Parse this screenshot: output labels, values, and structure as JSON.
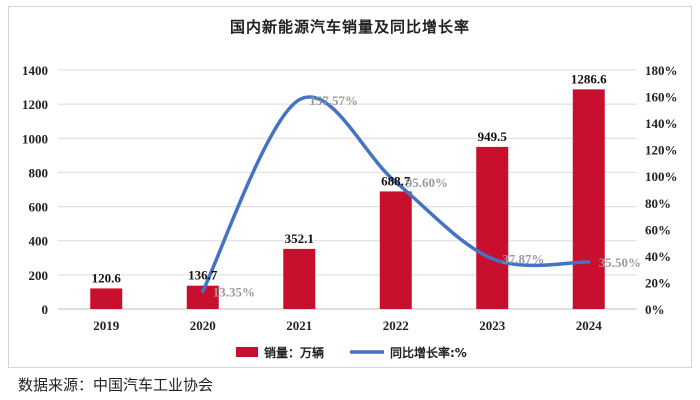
{
  "chart_data": {
    "type": "bar",
    "title": "国内新能源汽车销量及同比增长率",
    "categories": [
      "2019",
      "2020",
      "2021",
      "2022",
      "2023",
      "2024"
    ],
    "series": [
      {
        "name": "销量：万辆",
        "type": "bar",
        "axis": "left",
        "color": "#c8102e",
        "values": [
          120.6,
          136.7,
          352.1,
          688.7,
          949.5,
          1286.6
        ],
        "labels": [
          "120.6",
          "136.7",
          "352.1",
          "688.7",
          "949.5",
          "1286.6"
        ]
      },
      {
        "name": "同比增长率:%",
        "type": "line",
        "axis": "right",
        "color": "#4472c4",
        "values": [
          null,
          13.35,
          157.57,
          95.6,
          37.87,
          35.5
        ],
        "labels": [
          "",
          "13.35%",
          "157.57%",
          "95.60%",
          "37.87%",
          "35.50%"
        ]
      }
    ],
    "y_left": {
      "min": 0,
      "max": 1400,
      "ticks": [
        "0",
        "200",
        "400",
        "600",
        "800",
        "1000",
        "1200",
        "1400"
      ]
    },
    "y_right": {
      "min": 0,
      "max": 180,
      "ticks": [
        "0%",
        "20%",
        "40%",
        "60%",
        "80%",
        "100%",
        "120%",
        "140%",
        "160%",
        "180%"
      ]
    },
    "grid": true,
    "legend_position": "bottom"
  },
  "source_text": "数据来源：中国汽车工业协会"
}
